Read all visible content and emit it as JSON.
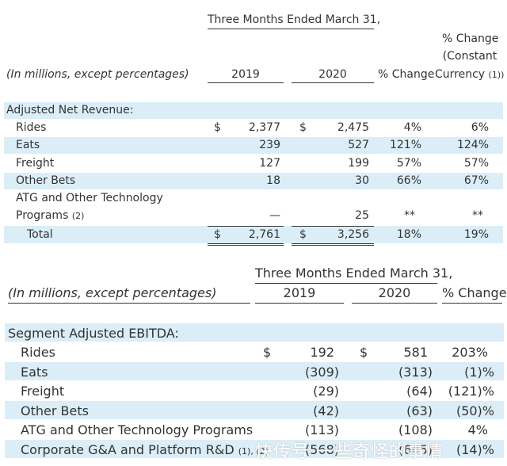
{
  "table1": {
    "period_header": "Three Months Ended March 31,",
    "units_label": "(In millions, except percentages)",
    "col_2019": "2019",
    "col_2020": "2020",
    "col_change": "% Change",
    "col_constant_1": "% Change",
    "col_constant_2": "(Constant",
    "col_constant_3": "Currency",
    "col_constant_note": "(1))",
    "section_label": "Adjusted Net Revenue:",
    "rows": [
      {
        "label": "Rides",
        "cur1": "$",
        "v2019": "2,377",
        "cur2": "$",
        "v2020": "2,475",
        "change": "4%",
        "constant": "6%"
      },
      {
        "label": "Eats",
        "cur1": "",
        "v2019": "239",
        "cur2": "",
        "v2020": "527",
        "change": "121%",
        "constant": "124%"
      },
      {
        "label": "Freight",
        "cur1": "",
        "v2019": "127",
        "cur2": "",
        "v2020": "199",
        "change": "57%",
        "constant": "57%"
      },
      {
        "label": "Other Bets",
        "cur1": "",
        "v2019": "18",
        "cur2": "",
        "v2020": "30",
        "change": "66%",
        "constant": "67%"
      }
    ],
    "atg_line1": "ATG and Other Technology",
    "atg_line2": "Programs",
    "atg_note": "(2)",
    "atg_v2019": "—",
    "atg_v2020": "25",
    "atg_change": "**",
    "atg_constant": "**",
    "total_label": "Total",
    "total_cur1": "$",
    "total_v2019": "2,761",
    "total_cur2": "$",
    "total_v2020": "3,256",
    "total_change": "18%",
    "total_constant": "19%"
  },
  "table2": {
    "period_header": "Three Months Ended March 31,",
    "units_label": "(In millions, except percentages)",
    "col_2019": "2019",
    "col_2020": "2020",
    "col_change": "% Change",
    "section_label": "Segment Adjusted EBITDA:",
    "rows": [
      {
        "label": "Rides",
        "cur1": "$",
        "v2019": "192",
        "cur2": "$",
        "v2020": "581",
        "change": "203%"
      },
      {
        "label": "Eats",
        "cur1": "",
        "v2019": "(309)",
        "cur2": "",
        "v2020": "(313)",
        "change": "(1)%"
      },
      {
        "label": "Freight",
        "cur1": "",
        "v2019": "(29)",
        "cur2": "",
        "v2020": "(64)",
        "change": "(121)%"
      },
      {
        "label": "Other Bets",
        "cur1": "",
        "v2019": "(42)",
        "cur2": "",
        "v2020": "(63)",
        "change": "(50)%"
      },
      {
        "label": "ATG and Other Technology Programs",
        "cur1": "",
        "v2019": "(113)",
        "cur2": "",
        "v2020": "(108)",
        "change": "4%"
      },
      {
        "label": "Corporate G&A and Platform R&D",
        "note": "(1), (2)",
        "cur1": "",
        "v2019": "(568)",
        "cur2": "",
        "v2020": "(645)",
        "change": "(14)%"
      }
    ]
  },
  "watermark": "快传号 一些奇怪的事情"
}
